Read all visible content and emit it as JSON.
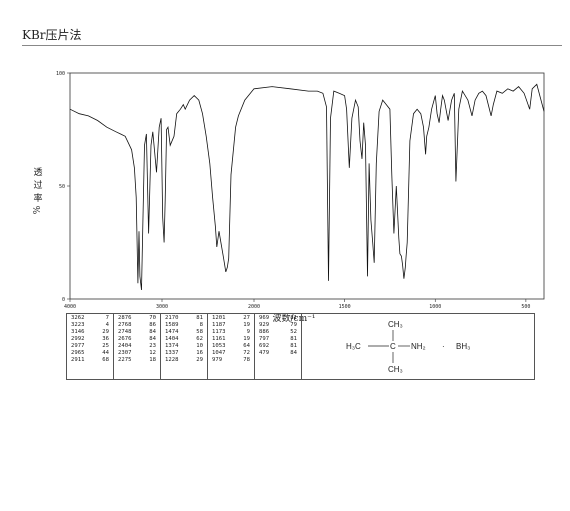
{
  "header": {
    "method": "KBr压片法"
  },
  "chart_data": {
    "type": "line",
    "xlabel": "波数/cm⁻¹",
    "ylabel": "透过率 %",
    "ylabel_chars": [
      "透",
      "过",
      "率"
    ],
    "ylabel_unit": "%",
    "xlim": [
      4000,
      400
    ],
    "ylim": [
      0,
      100
    ],
    "x_ticks": [
      "4000",
      "3000",
      "2000",
      "1500",
      "1000",
      "500"
    ],
    "y_ticks": [
      "100",
      "50",
      "0"
    ],
    "x": [
      4000,
      3900,
      3800,
      3700,
      3600,
      3500,
      3450,
      3400,
      3330,
      3300,
      3280,
      3262,
      3250,
      3240,
      3223,
      3210,
      3190,
      3170,
      3146,
      3120,
      3100,
      3060,
      3030,
      3010,
      2992,
      2977,
      2965,
      2950,
      2935,
      2911,
      2890,
      2870,
      2840,
      2800,
      2768,
      2748,
      2700,
      2650,
      2600,
      2560,
      2520,
      2480,
      2450,
      2420,
      2404,
      2380,
      2360,
      2330,
      2307,
      2290,
      2275,
      2250,
      2200,
      2170,
      2100,
      2000,
      1900,
      1800,
      1700,
      1650,
      1620,
      1600,
      1589,
      1578,
      1560,
      1530,
      1500,
      1489,
      1474,
      1460,
      1440,
      1425,
      1415,
      1404,
      1395,
      1385,
      1374,
      1365,
      1355,
      1345,
      1337,
      1325,
      1310,
      1290,
      1270,
      1250,
      1240,
      1228,
      1215,
      1201,
      1195,
      1187,
      1180,
      1173,
      1165,
      1161,
      1155,
      1140,
      1120,
      1100,
      1080,
      1065,
      1053,
      1047,
      1035,
      1020,
      1000,
      990,
      979,
      970,
      960,
      950,
      929,
      910,
      895,
      886,
      870,
      850,
      820,
      797,
      780,
      760,
      740,
      720,
      692,
      680,
      660,
      630,
      600,
      570,
      540,
      510,
      479,
      465,
      440,
      420,
      400
    ],
    "series": [
      {
        "values": [
          84,
          82,
          81,
          79,
          76,
          74,
          73,
          72,
          66,
          58,
          45,
          7,
          30,
          10,
          4,
          30,
          68,
          73,
          29,
          68,
          74,
          56,
          76,
          80,
          36,
          25,
          44,
          75,
          76,
          68,
          70,
          72,
          82,
          84,
          86,
          84,
          88,
          90,
          88,
          82,
          72,
          60,
          45,
          32,
          23,
          30,
          25,
          18,
          12,
          14,
          18,
          55,
          76,
          81,
          88,
          93,
          94,
          93,
          92,
          92,
          91,
          85,
          8,
          80,
          92,
          91,
          90,
          84,
          58,
          80,
          88,
          85,
          70,
          62,
          78,
          68,
          10,
          60,
          35,
          25,
          16,
          60,
          83,
          88,
          86,
          84,
          55,
          29,
          50,
          27,
          20,
          19,
          15,
          9,
          14,
          19,
          25,
          70,
          82,
          84,
          82,
          76,
          64,
          72,
          76,
          84,
          90,
          82,
          78,
          84,
          90,
          88,
          79,
          88,
          91,
          52,
          84,
          92,
          88,
          81,
          88,
          91,
          92,
          90,
          81,
          86,
          92,
          91,
          93,
          92,
          94,
          91,
          84,
          93,
          95,
          89,
          83
        ]
      }
    ],
    "grid": false,
    "legend": "none"
  },
  "peak_table": {
    "columns": [
      [
        [
          "3262",
          "7"
        ],
        [
          "3223",
          "4"
        ],
        [
          "3146",
          "29"
        ],
        [
          "2992",
          "36"
        ],
        [
          "2977",
          "25"
        ],
        [
          "2965",
          "44"
        ],
        [
          "2911",
          "68"
        ]
      ],
      [
        [
          "2876",
          "70"
        ],
        [
          "2768",
          "86"
        ],
        [
          "2748",
          "84"
        ],
        [
          "2676",
          "84"
        ],
        [
          "2404",
          "23"
        ],
        [
          "2307",
          "12"
        ],
        [
          "2275",
          "18"
        ]
      ],
      [
        [
          "2170",
          "81"
        ],
        [
          "1589",
          "8"
        ],
        [
          "1474",
          "58"
        ],
        [
          "1404",
          "62"
        ],
        [
          "1374",
          "10"
        ],
        [
          "1337",
          "16"
        ],
        [
          "1228",
          "29"
        ]
      ],
      [
        [
          "1201",
          "27"
        ],
        [
          "1187",
          "19"
        ],
        [
          "1173",
          "9"
        ],
        [
          "1161",
          "19"
        ],
        [
          "1053",
          "64"
        ],
        [
          "1047",
          "72"
        ],
        [
          "979",
          "78"
        ]
      ],
      [
        [
          "969",
          "81"
        ],
        [
          "929",
          "79"
        ],
        [
          "886",
          "52"
        ],
        [
          "797",
          "81"
        ],
        [
          "692",
          "81"
        ],
        [
          "479",
          "84"
        ]
      ]
    ]
  },
  "structure": {
    "ch3_top": "CH₃",
    "h3c_left": "H₃C",
    "carbon": "C",
    "nh2": "NH₂",
    "dot": "·",
    "bh3": "BH₃",
    "ch3_bottom": "CH₃"
  }
}
